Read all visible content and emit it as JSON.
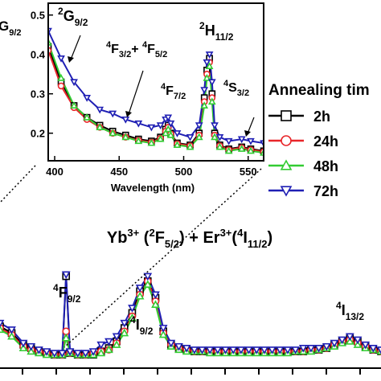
{
  "chart_data": [
    {
      "type": "line",
      "id": "main",
      "xlabel": "",
      "ylabel": "",
      "xlim": [
        640,
        1620
      ],
      "ylim": [
        0,
        1
      ],
      "title_parts": {
        "yb": "Yb",
        "yb_sup": "3+",
        "yb_state_open": " (",
        "yb_state_sup": "2",
        "yb_state_main": "F",
        "yb_state_sub": "5/2",
        "yb_state_close": ") + ",
        "er": "Er",
        "er_sup": "3+",
        "er_state_open": "(",
        "er_state_sup": "4",
        "er_state_main": "I",
        "er_state_sub": "11/2",
        "er_state_close": ")"
      },
      "annotations": [
        {
          "sup": "4",
          "main": "F",
          "sub": "9/2"
        },
        {
          "sup": "4",
          "main": "I",
          "sub": "9/2"
        },
        {
          "sup": "4",
          "main": "I",
          "sub": "13/2"
        }
      ],
      "series": [
        {
          "name": "2h",
          "color": "#000000",
          "marker": "square",
          "x": [
            640,
            670,
            700,
            720,
            740,
            760,
            780,
            800,
            810,
            820,
            840,
            860,
            880,
            900,
            920,
            940,
            960,
            980,
            1000,
            1020,
            1040,
            1060,
            1080,
            1100,
            1120,
            1140,
            1160,
            1180,
            1200,
            1220,
            1240,
            1260,
            1280,
            1300,
            1320,
            1340,
            1360,
            1380,
            1400,
            1420,
            1440,
            1460,
            1480,
            1500,
            1520,
            1540,
            1560,
            1580,
            1600,
            1620
          ],
          "y": [
            0.25,
            0.21,
            0.14,
            0.12,
            0.1,
            0.09,
            0.08,
            0.08,
            0.55,
            0.09,
            0.08,
            0.08,
            0.08,
            0.1,
            0.12,
            0.16,
            0.24,
            0.33,
            0.46,
            0.52,
            0.42,
            0.22,
            0.14,
            0.12,
            0.11,
            0.1,
            0.1,
            0.1,
            0.1,
            0.1,
            0.1,
            0.1,
            0.1,
            0.1,
            0.1,
            0.1,
            0.1,
            0.1,
            0.1,
            0.1,
            0.11,
            0.11,
            0.12,
            0.14,
            0.16,
            0.18,
            0.16,
            0.13,
            0.11,
            0.1
          ]
        },
        {
          "name": "24h",
          "color": "#e8262a",
          "marker": "circle",
          "x": [
            640,
            670,
            700,
            720,
            740,
            760,
            780,
            800,
            810,
            820,
            840,
            860,
            880,
            900,
            920,
            940,
            960,
            980,
            1000,
            1020,
            1040,
            1060,
            1080,
            1100,
            1120,
            1140,
            1160,
            1180,
            1200,
            1220,
            1240,
            1260,
            1280,
            1300,
            1320,
            1340,
            1360,
            1380,
            1400,
            1420,
            1440,
            1460,
            1480,
            1500,
            1520,
            1540,
            1560,
            1580,
            1600,
            1620
          ],
          "y": [
            0.24,
            0.2,
            0.13,
            0.11,
            0.1,
            0.09,
            0.08,
            0.08,
            0.22,
            0.09,
            0.08,
            0.08,
            0.09,
            0.1,
            0.11,
            0.15,
            0.22,
            0.31,
            0.44,
            0.52,
            0.4,
            0.21,
            0.14,
            0.12,
            0.11,
            0.1,
            0.1,
            0.1,
            0.1,
            0.1,
            0.1,
            0.1,
            0.1,
            0.1,
            0.1,
            0.1,
            0.1,
            0.1,
            0.1,
            0.1,
            0.11,
            0.11,
            0.12,
            0.14,
            0.16,
            0.17,
            0.15,
            0.13,
            0.11,
            0.1
          ]
        },
        {
          "name": "48h",
          "color": "#33cc33",
          "marker": "triangle-up",
          "x": [
            640,
            670,
            700,
            720,
            740,
            760,
            780,
            800,
            810,
            820,
            840,
            860,
            880,
            900,
            920,
            940,
            960,
            980,
            1000,
            1020,
            1040,
            1060,
            1080,
            1100,
            1120,
            1140,
            1160,
            1180,
            1200,
            1220,
            1240,
            1260,
            1280,
            1300,
            1320,
            1340,
            1360,
            1380,
            1400,
            1420,
            1440,
            1460,
            1480,
            1500,
            1520,
            1540,
            1560,
            1580,
            1600,
            1620
          ],
          "y": [
            0.23,
            0.19,
            0.12,
            0.1,
            0.09,
            0.08,
            0.08,
            0.08,
            0.18,
            0.09,
            0.08,
            0.08,
            0.08,
            0.09,
            0.11,
            0.14,
            0.21,
            0.3,
            0.43,
            0.5,
            0.38,
            0.2,
            0.13,
            0.11,
            0.1,
            0.1,
            0.1,
            0.09,
            0.09,
            0.09,
            0.09,
            0.09,
            0.09,
            0.09,
            0.09,
            0.09,
            0.09,
            0.09,
            0.1,
            0.1,
            0.1,
            0.11,
            0.12,
            0.13,
            0.15,
            0.16,
            0.14,
            0.12,
            0.11,
            0.1
          ]
        },
        {
          "name": "72h",
          "color": "#1f1fb4",
          "marker": "triangle-down",
          "x": [
            640,
            670,
            700,
            720,
            740,
            760,
            780,
            800,
            810,
            820,
            840,
            860,
            880,
            900,
            920,
            940,
            960,
            980,
            1000,
            1020,
            1040,
            1060,
            1080,
            1100,
            1120,
            1140,
            1160,
            1180,
            1200,
            1220,
            1240,
            1260,
            1280,
            1300,
            1320,
            1340,
            1360,
            1380,
            1400,
            1420,
            1440,
            1460,
            1480,
            1500,
            1520,
            1540,
            1560,
            1580,
            1600,
            1620
          ],
          "y": [
            0.27,
            0.23,
            0.15,
            0.13,
            0.11,
            0.1,
            0.09,
            0.09,
            0.56,
            0.1,
            0.09,
            0.09,
            0.1,
            0.14,
            0.16,
            0.19,
            0.27,
            0.36,
            0.48,
            0.55,
            0.44,
            0.24,
            0.15,
            0.13,
            0.12,
            0.11,
            0.11,
            0.11,
            0.11,
            0.11,
            0.11,
            0.11,
            0.11,
            0.11,
            0.11,
            0.11,
            0.11,
            0.11,
            0.11,
            0.12,
            0.12,
            0.12,
            0.13,
            0.15,
            0.17,
            0.19,
            0.17,
            0.14,
            0.12,
            0.11
          ]
        }
      ]
    },
    {
      "type": "line",
      "id": "inset",
      "xlabel": "Wavelength (nm)",
      "ylabel": "",
      "xlim": [
        395,
        562
      ],
      "ylim": [
        0.13,
        0.53
      ],
      "xticks": [
        400,
        450,
        500,
        550
      ],
      "xtick_labels": [
        "400",
        "450",
        "500",
        "550"
      ],
      "yticks": [
        0.2,
        0.3,
        0.4,
        0.5
      ],
      "ytick_labels": [
        "0.2",
        "0.3",
        "0.4",
        "0.5"
      ],
      "annotations": [
        {
          "sup": "2",
          "main": "G",
          "sub": "9/2"
        },
        {
          "sup": "2",
          "main": "G",
          "sub": "9/2"
        },
        {
          "sup": "4",
          "main": "F",
          "sub": "3/2",
          "plus": "+ ",
          "sup2": "4",
          "main2": "F",
          "sub2": "5/2"
        },
        {
          "sup": "4",
          "main": "F",
          "sub": "7/2"
        },
        {
          "sup": "2",
          "main": "H",
          "sub": "11/2"
        },
        {
          "sup": "4",
          "main": "S",
          "sub": "3/2"
        }
      ],
      "series": [
        {
          "name": "2h",
          "color": "#000000",
          "marker": "square",
          "x": [
            395,
            405,
            415,
            425,
            435,
            445,
            455,
            465,
            475,
            482,
            486,
            488,
            490,
            495,
            505,
            512,
            516,
            518,
            520,
            522,
            524,
            528,
            535,
            545,
            552,
            562
          ],
          "y": [
            0.42,
            0.33,
            0.27,
            0.24,
            0.22,
            0.205,
            0.195,
            0.185,
            0.18,
            0.19,
            0.21,
            0.22,
            0.2,
            0.175,
            0.17,
            0.2,
            0.29,
            0.36,
            0.39,
            0.3,
            0.2,
            0.17,
            0.16,
            0.165,
            0.16,
            0.155
          ]
        },
        {
          "name": "24h",
          "color": "#e8262a",
          "marker": "circle",
          "x": [
            395,
            405,
            415,
            425,
            435,
            445,
            455,
            465,
            475,
            482,
            486,
            488,
            490,
            495,
            505,
            512,
            516,
            518,
            520,
            522,
            524,
            528,
            535,
            545,
            552,
            562
          ],
          "y": [
            0.41,
            0.32,
            0.265,
            0.235,
            0.215,
            0.2,
            0.19,
            0.182,
            0.177,
            0.187,
            0.205,
            0.215,
            0.198,
            0.173,
            0.168,
            0.195,
            0.28,
            0.35,
            0.38,
            0.29,
            0.195,
            0.168,
            0.158,
            0.163,
            0.158,
            0.153
          ]
        },
        {
          "name": "48h",
          "color": "#33cc33",
          "marker": "triangle-up",
          "x": [
            395,
            405,
            415,
            425,
            435,
            445,
            455,
            465,
            475,
            482,
            486,
            488,
            490,
            495,
            505,
            512,
            516,
            518,
            520,
            522,
            524,
            528,
            535,
            545,
            552,
            562
          ],
          "y": [
            0.43,
            0.34,
            0.27,
            0.24,
            0.215,
            0.2,
            0.19,
            0.18,
            0.175,
            0.185,
            0.2,
            0.21,
            0.195,
            0.17,
            0.165,
            0.19,
            0.27,
            0.34,
            0.37,
            0.28,
            0.19,
            0.165,
            0.155,
            0.16,
            0.155,
            0.15
          ]
        },
        {
          "name": "72h",
          "color": "#1f1fb4",
          "marker": "triangle-down",
          "x": [
            395,
            405,
            415,
            425,
            435,
            445,
            455,
            465,
            475,
            482,
            486,
            488,
            490,
            495,
            505,
            512,
            516,
            518,
            520,
            522,
            524,
            528,
            535,
            545,
            552,
            562
          ],
          "y": [
            0.46,
            0.39,
            0.33,
            0.29,
            0.26,
            0.25,
            0.235,
            0.225,
            0.215,
            0.22,
            0.235,
            0.24,
            0.225,
            0.2,
            0.19,
            0.22,
            0.31,
            0.38,
            0.4,
            0.33,
            0.22,
            0.19,
            0.18,
            0.185,
            0.18,
            0.175
          ]
        }
      ]
    }
  ],
  "legend": {
    "title": "Annealing tim",
    "placement": "right",
    "entries": [
      "2h",
      "24h",
      "48h",
      "72h"
    ]
  }
}
